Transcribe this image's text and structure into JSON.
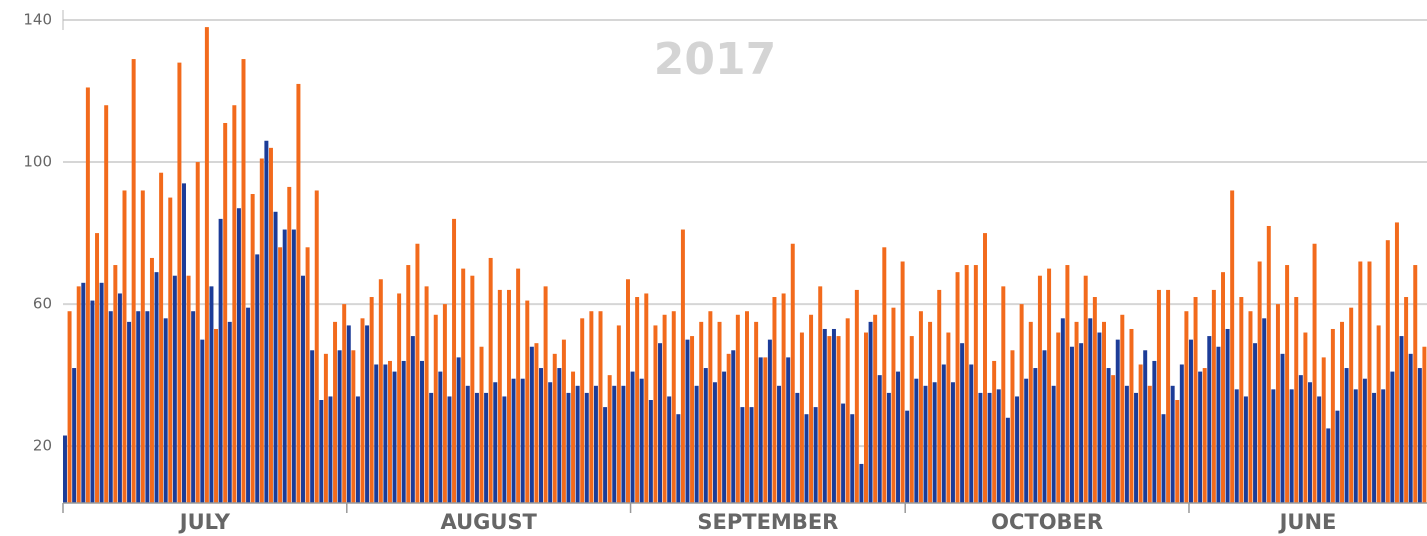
{
  "chart_data": {
    "type": "bar",
    "title": "2017",
    "months": [
      {
        "label": "JULY",
        "days": 31
      },
      {
        "label": "AUGUST",
        "days": 31
      },
      {
        "label": "SEPTEMBER",
        "days": 30
      },
      {
        "label": "OCTOBER",
        "days": 31
      },
      {
        "label": "JUNE",
        "days": 26
      }
    ],
    "categories": [
      null,
      null,
      null,
      null,
      null,
      null,
      null,
      null,
      null,
      null,
      null,
      null,
      null,
      null,
      null,
      null,
      null,
      null,
      null,
      null,
      null,
      null,
      null,
      null,
      null,
      null,
      null,
      null,
      null,
      null,
      null,
      null,
      null,
      null,
      null,
      null,
      null,
      null,
      null,
      null,
      null,
      null,
      null,
      null,
      null,
      null,
      null,
      null,
      null,
      null,
      null,
      null,
      null,
      null,
      null,
      null,
      null,
      null,
      null,
      null,
      null,
      null,
      null,
      null,
      null,
      null,
      null,
      null,
      null,
      null,
      null,
      null,
      null,
      null,
      null,
      null,
      null,
      null,
      null,
      null,
      null,
      null,
      null,
      null,
      null,
      null,
      null,
      null,
      null,
      null,
      null,
      null,
      null,
      null,
      null,
      null,
      null,
      null,
      null,
      null,
      null,
      null,
      null,
      null,
      null,
      null,
      null,
      null,
      null,
      null,
      null,
      null,
      null,
      null,
      null,
      null,
      null,
      null,
      null,
      null,
      null,
      null,
      null,
      null,
      null,
      null,
      null,
      null,
      null,
      null,
      null,
      null,
      null,
      null,
      null,
      null,
      null,
      null,
      null,
      null,
      null,
      null,
      null,
      null,
      null,
      null,
      null,
      null,
      null
    ],
    "series": [
      {
        "color": "#1c3c98",
        "values": [
          23,
          42,
          66,
          61,
          66,
          58,
          63,
          55,
          58,
          58,
          69,
          56,
          68,
          94,
          58,
          50,
          65,
          84,
          55,
          87,
          59,
          74,
          106,
          86,
          81,
          81,
          68,
          47,
          33,
          34,
          47,
          54,
          34,
          54,
          43,
          43,
          41,
          44,
          51,
          44,
          35,
          41,
          34,
          45,
          37,
          35,
          35,
          38,
          34,
          39,
          39,
          48,
          42,
          38,
          42,
          35,
          37,
          35,
          37,
          31,
          37,
          37,
          41,
          39,
          33,
          49,
          34,
          29,
          50,
          37,
          42,
          38,
          41,
          47,
          31,
          31,
          45,
          50,
          37,
          45,
          35,
          29,
          31,
          53,
          53,
          32,
          29,
          15,
          55,
          40,
          35,
          41,
          30,
          39,
          37,
          38,
          43,
          38,
          49,
          43,
          35,
          35,
          36,
          28,
          34,
          39,
          42,
          47,
          37,
          56,
          48,
          49,
          56,
          52,
          42,
          50,
          37,
          35,
          47,
          44,
          29,
          37,
          43,
          50,
          41,
          51,
          48,
          53,
          36,
          34,
          49,
          56,
          36,
          46,
          36,
          40,
          38,
          34,
          25,
          30,
          42,
          36,
          39,
          35,
          36,
          41,
          51,
          46,
          42
        ]
      },
      {
        "color": "#f26a1c",
        "values": [
          58,
          65,
          121,
          80,
          116,
          71,
          92,
          129,
          92,
          73,
          97,
          90,
          128,
          68,
          100,
          138,
          53,
          111,
          116,
          129,
          91,
          101,
          104,
          76,
          93,
          122,
          76,
          92,
          46,
          55,
          60,
          47,
          56,
          62,
          67,
          44,
          63,
          71,
          77,
          65,
          57,
          60,
          84,
          70,
          68,
          48,
          73,
          64,
          64,
          70,
          61,
          49,
          65,
          46,
          50,
          41,
          56,
          58,
          58,
          40,
          54,
          67,
          62,
          63,
          54,
          57,
          58,
          81,
          51,
          55,
          58,
          55,
          46,
          57,
          58,
          55,
          45,
          62,
          63,
          77,
          52,
          57,
          65,
          51,
          51,
          56,
          64,
          52,
          57,
          76,
          59,
          72,
          51,
          58,
          55,
          64,
          52,
          69,
          71,
          71,
          80,
          44,
          65,
          47,
          60,
          55,
          68,
          70,
          52,
          71,
          55,
          68,
          62,
          55,
          40,
          57,
          53,
          43,
          37,
          64,
          64,
          33,
          58,
          62,
          42,
          64,
          69,
          92,
          62,
          58,
          72,
          82,
          60,
          71,
          62,
          52,
          77,
          45,
          53,
          55,
          59,
          72,
          72,
          54,
          78,
          83,
          62,
          71,
          48
        ]
      }
    ],
    "ylim": [
      4,
      140
    ],
    "yticks": [
      20,
      60,
      100,
      140
    ],
    "grid": true
  }
}
